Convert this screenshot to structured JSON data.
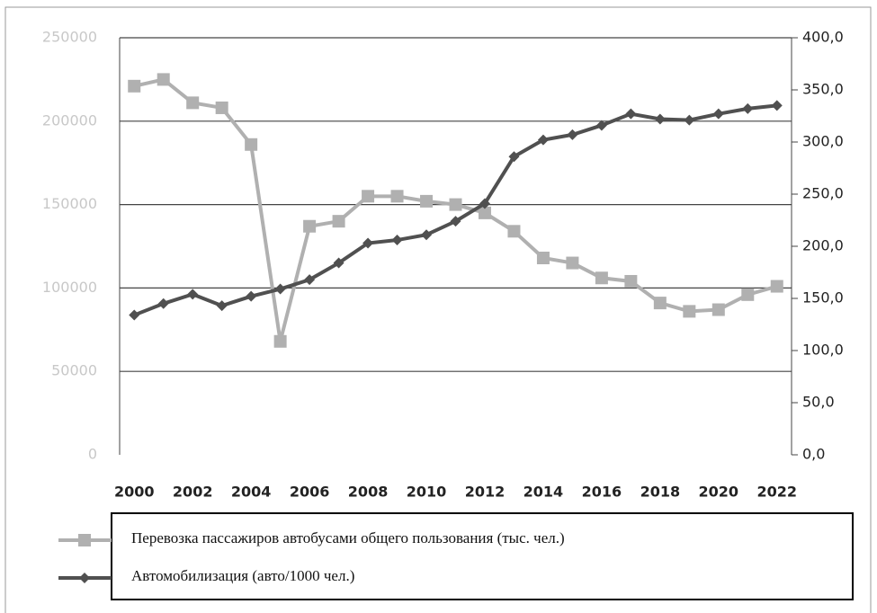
{
  "chart_data": {
    "type": "line",
    "x": [
      2000,
      2001,
      2002,
      2003,
      2004,
      2005,
      2006,
      2007,
      2008,
      2009,
      2010,
      2011,
      2012,
      2013,
      2014,
      2015,
      2016,
      2017,
      2018,
      2019,
      2020,
      2021,
      2022
    ],
    "xlim": [
      1999.5,
      2022.5
    ],
    "xticks": [
      2000,
      2002,
      2004,
      2006,
      2008,
      2010,
      2012,
      2014,
      2016,
      2018,
      2020,
      2022
    ],
    "ylim": [
      0,
      250000
    ],
    "yticks": [
      0,
      50000,
      100000,
      150000,
      200000,
      250000
    ],
    "y2lim": [
      0,
      400
    ],
    "y2ticks": [
      {
        "value": 0,
        "label": "0,0"
      },
      {
        "value": 50,
        "label": "50,0"
      },
      {
        "value": 100,
        "label": "100,0"
      },
      {
        "value": 150,
        "label": "150,0"
      },
      {
        "value": 200,
        "label": "200,0"
      },
      {
        "value": 250,
        "label": "250,0"
      },
      {
        "value": 300,
        "label": "300,0"
      },
      {
        "value": 350,
        "label": "350,0"
      },
      {
        "value": 400,
        "label": "400,0"
      }
    ],
    "grid": true,
    "series": [
      {
        "name": "Перевозка пассажиров автобусами общего пользования (тыс. чел.)",
        "color": "#b0b0b0",
        "marker": "square",
        "values": [
          221000,
          225000,
          211000,
          208000,
          186000,
          68000,
          137000,
          140000,
          155000,
          155000,
          152000,
          150000,
          145000,
          134000,
          118000,
          115000,
          106000,
          104000,
          91000,
          86000,
          87000,
          96000,
          101000
        ]
      },
      {
        "name": "Автомобилизация (авто/1000 чел.)",
        "color": "#505050",
        "marker": "diamond",
        "axis": "y2",
        "values": [
          134,
          145,
          154,
          143,
          152,
          159,
          168,
          184,
          203,
          206,
          211,
          224,
          241,
          286,
          302,
          307,
          316,
          327,
          322,
          321,
          327,
          332,
          335
        ]
      }
    ]
  }
}
